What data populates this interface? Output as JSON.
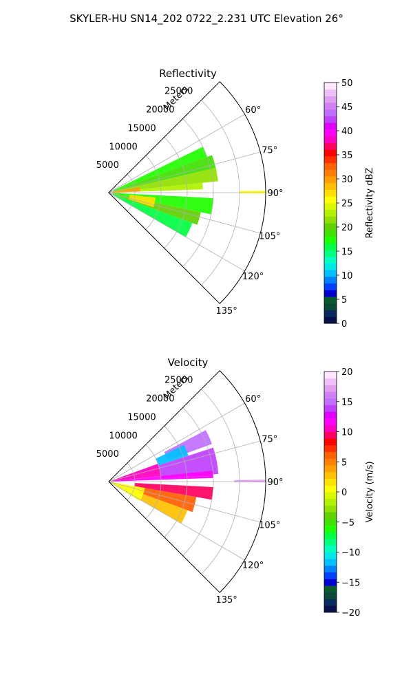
{
  "suptitle": "SKYLER-HU  SN14_202  0722_2.231 UTC Elevation 26°",
  "chart_data": [
    {
      "type": "heatmap",
      "subtype": "polar-sector-ppi",
      "title": "Reflectivity",
      "radial_label": "Meters",
      "r_ticks": [
        5000,
        10000,
        15000,
        20000,
        25000
      ],
      "r_tick_labels": [
        "5000",
        "10000",
        "15000",
        "20000",
        "25000"
      ],
      "r_max": 30000,
      "theta_range": [
        45,
        135
      ],
      "theta_ticks": [
        60,
        75,
        90,
        105,
        120,
        135
      ],
      "theta_tick_labels": [
        "60°",
        "75°",
        "90°",
        "105°",
        "120°",
        "135°"
      ],
      "grid": true,
      "colorbar": {
        "label": "Reflectivity dBZ",
        "min": 0,
        "max": 50,
        "ticks": [
          0,
          5,
          10,
          15,
          20,
          25,
          30,
          35,
          40,
          45,
          50
        ],
        "tick_labels": [
          "0",
          "5",
          "10",
          "15",
          "20",
          "25",
          "30",
          "35",
          "40",
          "45",
          "50"
        ],
        "colors": [
          "#08104a",
          "#0a2a5e",
          "#0b4a3a",
          "#0a5a30",
          "#0000d0",
          "#0040ff",
          "#0080ff",
          "#00c0ff",
          "#00e8e8",
          "#00ffc0",
          "#00ff80",
          "#00ff40",
          "#20ff00",
          "#40e000",
          "#60d000",
          "#90e000",
          "#b0f000",
          "#d8f800",
          "#ffff00",
          "#ffe000",
          "#ffc000",
          "#ffa000",
          "#ff8000",
          "#ff6000",
          "#ff3000",
          "#ff0000",
          "#ff0060",
          "#ff00c0",
          "#ff00ff",
          "#e000ff",
          "#c040ff",
          "#c070ff",
          "#d080f0",
          "#e0a0f0",
          "#f0c0f8",
          "#ffe8ff"
        ]
      },
      "sectors": [
        {
          "az_start": 64,
          "az_end": 70,
          "r_start": 1000,
          "r_end": 20000,
          "value": 17
        },
        {
          "az_start": 70,
          "az_end": 77,
          "r_start": 1000,
          "r_end": 21000,
          "value": 19
        },
        {
          "az_start": 77,
          "az_end": 84,
          "r_start": 800,
          "r_end": 21000,
          "value": 21
        },
        {
          "az_start": 84,
          "az_end": 88,
          "r_start": 500,
          "r_end": 18000,
          "value": 23
        },
        {
          "az_start": 80,
          "az_end": 88,
          "r_start": 500,
          "r_end": 6000,
          "value": 30
        },
        {
          "az_start": 89.3,
          "az_end": 90.3,
          "r_start": 25000,
          "r_end": 30000,
          "value": 26
        },
        {
          "az_start": 93,
          "az_end": 102,
          "r_start": 800,
          "r_end": 20000,
          "value": 18
        },
        {
          "az_start": 102,
          "az_end": 110,
          "r_start": 800,
          "r_end": 18000,
          "value": 20
        },
        {
          "az_start": 110,
          "az_end": 120,
          "r_start": 800,
          "r_end": 17000,
          "value": 16
        },
        {
          "az_start": 96,
          "az_end": 108,
          "r_start": 4000,
          "r_end": 9000,
          "value": 27
        }
      ]
    },
    {
      "type": "heatmap",
      "subtype": "polar-sector-ppi",
      "title": "Velocity",
      "radial_label": "Meters",
      "r_ticks": [
        5000,
        10000,
        15000,
        20000,
        25000
      ],
      "r_tick_labels": [
        "5000",
        "10000",
        "15000",
        "20000",
        "25000"
      ],
      "r_max": 30000,
      "theta_range": [
        45,
        135
      ],
      "theta_ticks": [
        60,
        75,
        90,
        105,
        120,
        135
      ],
      "theta_tick_labels": [
        "60°",
        "75°",
        "90°",
        "105°",
        "120°",
        "135°"
      ],
      "grid": true,
      "colorbar": {
        "label": "Velocity (m/s)",
        "min": -20,
        "max": 20,
        "ticks": [
          -20,
          -15,
          -10,
          -5,
          0,
          5,
          10,
          15,
          20
        ],
        "tick_labels": [
          "−20",
          "−15",
          "−10",
          "−5",
          "0",
          "5",
          "10",
          "15",
          "20"
        ],
        "colors": [
          "#08104a",
          "#0a2a5e",
          "#0b4a3a",
          "#0a5a30",
          "#0000d0",
          "#0040ff",
          "#0080ff",
          "#00c0ff",
          "#00e8e8",
          "#00ffc0",
          "#00ff80",
          "#00ff40",
          "#20ff00",
          "#40e000",
          "#60d000",
          "#90e000",
          "#b0f000",
          "#d8f800",
          "#ffff00",
          "#ffe000",
          "#ffc000",
          "#ffa000",
          "#ff8000",
          "#ff6000",
          "#ff3000",
          "#ff0000",
          "#ff0060",
          "#ff00c0",
          "#ff00ff",
          "#e000ff",
          "#c040ff",
          "#c070ff",
          "#d080f0",
          "#e0a0f0",
          "#f0c0f8",
          "#ffe8ff"
        ]
      },
      "sectors": [
        {
          "az_start": 62,
          "az_end": 70,
          "r_start": 12000,
          "r_end": 21000,
          "value": 15
        },
        {
          "az_start": 64,
          "az_end": 72,
          "r_start": 10000,
          "r_end": 16000,
          "value": -12
        },
        {
          "az_start": 70,
          "az_end": 84,
          "r_start": 500,
          "r_end": 10000,
          "value": 10
        },
        {
          "az_start": 72,
          "az_end": 86,
          "r_start": 10000,
          "r_end": 21000,
          "value": 14
        },
        {
          "az_start": 84,
          "az_end": 88,
          "r_start": 500,
          "r_end": 20000,
          "value": 12
        },
        {
          "az_start": 89.3,
          "az_end": 90.3,
          "r_start": 24000,
          "r_end": 30000,
          "value": 17
        },
        {
          "az_start": 93,
          "az_end": 100,
          "r_start": 5000,
          "r_end": 20000,
          "value": 9
        },
        {
          "az_start": 100,
          "az_end": 110,
          "r_start": 6000,
          "r_end": 17000,
          "value": 6
        },
        {
          "az_start": 110,
          "az_end": 120,
          "r_start": 7000,
          "r_end": 16000,
          "value": 3
        },
        {
          "az_start": 100,
          "az_end": 122,
          "r_start": 500,
          "r_end": 7000,
          "value": 0
        }
      ]
    }
  ]
}
